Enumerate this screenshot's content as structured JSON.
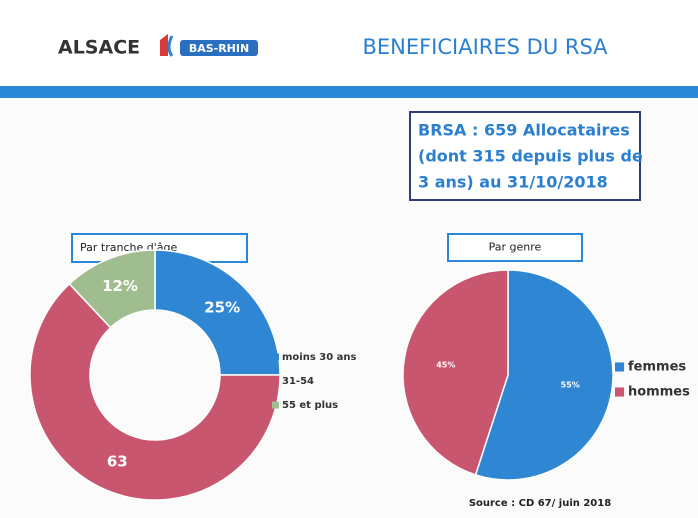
{
  "header": {
    "brand": "ALSACE",
    "logo_text": "BAS-RHIN",
    "title": "BENEFICIAIRES DU RSA"
  },
  "info_box": {
    "lines": [
      "BRSA : 659 Allocataires",
      "(dont 315 depuis plus de",
      "3 ans) au 31/10/2018"
    ]
  },
  "source": "Source : CD 67/ juin 2018",
  "chart_data": [
    {
      "type": "donut",
      "title": "Par tranche d'âge",
      "categories": [
        "moins 30 ans",
        "31-54",
        "55 et plus"
      ],
      "values": [
        25,
        63,
        12
      ],
      "value_labels": [
        "25%",
        "63",
        "12%"
      ],
      "colors": [
        "#2f86d3",
        "#c9566f",
        "#9fbd8e"
      ],
      "legend": "right"
    },
    {
      "type": "pie",
      "title": "Par genre",
      "categories": [
        "femmes",
        "hommes"
      ],
      "values": [
        55,
        45
      ],
      "value_labels": [
        "55%",
        "45%"
      ],
      "colors": [
        "#2f86d3",
        "#c9566f"
      ],
      "legend": "right"
    }
  ]
}
